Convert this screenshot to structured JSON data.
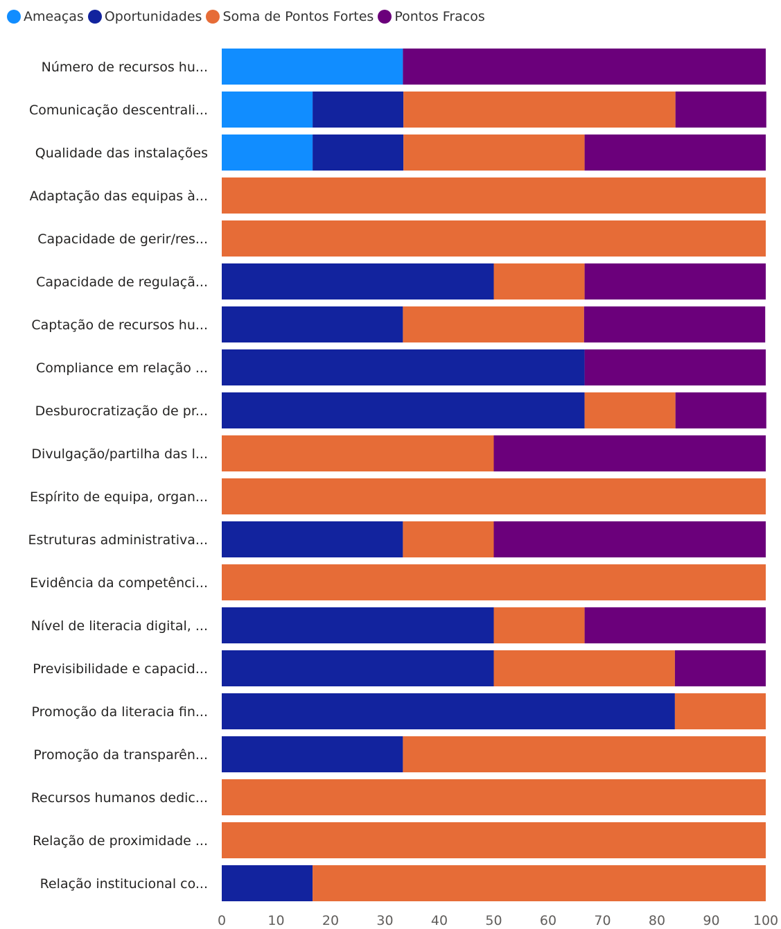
{
  "chart_data": {
    "type": "bar",
    "orientation": "horizontal",
    "stacked": "percent",
    "legend_position": "top-left",
    "grid": false,
    "xlim": [
      0,
      100
    ],
    "xticks": [
      "0",
      "10",
      "20",
      "30",
      "40",
      "50",
      "60",
      "70",
      "80",
      "90",
      "100"
    ],
    "categories": [
      "Número de recursos hu...",
      "Comunicação descentrali...",
      "Qualidade das instalações",
      "Adaptação das equipas à...",
      "Capacidade de gerir/res...",
      "Capacidade de regulaçã...",
      "Captação de recursos hu...",
      "Compliance em relação ...",
      "Desburocratização de pr...",
      "Divulgação/partilha das l...",
      "Espírito de equipa, organ...",
      "Estruturas administrativa...",
      "Evidência da competênci...",
      "Nível de literacia digital, ...",
      "Previsibilidade e capacid...",
      "Promoção da literacia fin...",
      "Promoção da transparên...",
      "Recursos humanos dedic...",
      "Relação de proximidade ...",
      "Relação institucional co..."
    ],
    "series": [
      {
        "name": "Ameaças",
        "color": "#118DFF",
        "values": [
          33.3,
          16.7,
          16.7,
          0,
          0,
          0,
          0,
          0,
          0,
          0,
          0,
          0,
          0,
          0,
          0,
          0,
          0,
          0,
          0,
          0
        ]
      },
      {
        "name": "Oportunidades",
        "color": "#12239E",
        "values": [
          0,
          16.7,
          16.7,
          0,
          0,
          50,
          33.3,
          66.7,
          66.7,
          0,
          0,
          33.3,
          0,
          50,
          50,
          83.3,
          33.3,
          0,
          0,
          16.7
        ]
      },
      {
        "name": "Soma de Pontos Fortes",
        "color": "#E66C37",
        "values": [
          0,
          50,
          33.3,
          100,
          100,
          16.7,
          33.3,
          0,
          16.7,
          50,
          100,
          16.7,
          100,
          16.7,
          33.3,
          16.7,
          66.7,
          100,
          100,
          83.3
        ]
      },
      {
        "name": "Pontos Fracos",
        "color": "#6B007B",
        "values": [
          66.7,
          16.7,
          33.3,
          0,
          0,
          33.3,
          33.3,
          33.3,
          16.7,
          50,
          0,
          50,
          0,
          33.3,
          16.7,
          0,
          0,
          0,
          0,
          0
        ]
      }
    ],
    "label_color": "#252423",
    "axis_label_color": "#605E5C"
  }
}
